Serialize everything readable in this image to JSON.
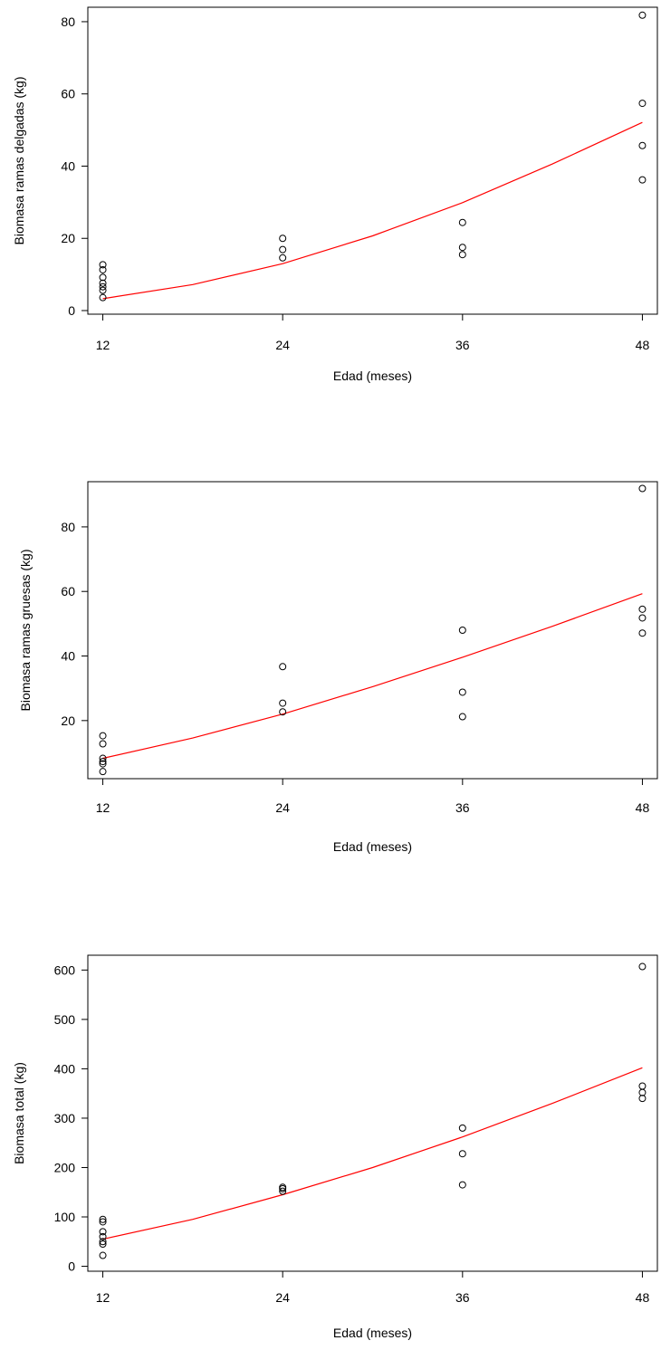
{
  "chart_data": [
    {
      "type": "scatter",
      "xlabel": "Edad (meses)",
      "ylabel": "Biomasa ramas delgadas (kg)",
      "x_ticks": [
        12,
        24,
        36,
        48
      ],
      "y_ticks": [
        0,
        20,
        40,
        60,
        80
      ],
      "xlim": [
        11,
        49
      ],
      "ylim": [
        -1,
        84
      ],
      "points": [
        {
          "x": 12,
          "y": 12.7
        },
        {
          "x": 12,
          "y": 11.3
        },
        {
          "x": 12,
          "y": 9.2
        },
        {
          "x": 12,
          "y": 7.6
        },
        {
          "x": 12,
          "y": 6.6
        },
        {
          "x": 12,
          "y": 5.6
        },
        {
          "x": 12,
          "y": 3.6
        },
        {
          "x": 24,
          "y": 20.0
        },
        {
          "x": 24,
          "y": 16.9
        },
        {
          "x": 24,
          "y": 14.6
        },
        {
          "x": 36,
          "y": 24.4
        },
        {
          "x": 36,
          "y": 17.5
        },
        {
          "x": 36,
          "y": 15.5
        },
        {
          "x": 48,
          "y": 81.8
        },
        {
          "x": 48,
          "y": 57.4
        },
        {
          "x": 48,
          "y": 45.7
        },
        {
          "x": 48,
          "y": 36.2
        }
      ],
      "fit_line": {
        "color": "#ff0000",
        "x": [
          12,
          18,
          24,
          30,
          36,
          42,
          48
        ],
        "y": [
          3.3,
          7.2,
          13.0,
          20.7,
          29.9,
          40.6,
          52.1
        ]
      }
    },
    {
      "type": "scatter",
      "xlabel": "Edad (meses)",
      "ylabel": "Biomasa ramas gruesas (kg)",
      "x_ticks": [
        12,
        24,
        36,
        48
      ],
      "y_ticks": [
        20,
        40,
        60,
        80
      ],
      "xlim": [
        11,
        49
      ],
      "ylim": [
        2,
        94
      ],
      "points": [
        {
          "x": 12,
          "y": 15.3
        },
        {
          "x": 12,
          "y": 12.8
        },
        {
          "x": 12,
          "y": 8.3
        },
        {
          "x": 12,
          "y": 7.3
        },
        {
          "x": 12,
          "y": 6.6
        },
        {
          "x": 12,
          "y": 4.2
        },
        {
          "x": 24,
          "y": 36.7
        },
        {
          "x": 24,
          "y": 25.4
        },
        {
          "x": 24,
          "y": 22.7
        },
        {
          "x": 36,
          "y": 48.0
        },
        {
          "x": 36,
          "y": 28.8
        },
        {
          "x": 36,
          "y": 21.2
        },
        {
          "x": 48,
          "y": 91.9
        },
        {
          "x": 48,
          "y": 54.5
        },
        {
          "x": 48,
          "y": 51.8
        },
        {
          "x": 48,
          "y": 47.1
        }
      ],
      "fit_line": {
        "color": "#ff0000",
        "x": [
          12,
          18,
          24,
          30,
          36,
          42,
          48
        ],
        "y": [
          8.3,
          14.6,
          22.0,
          30.5,
          39.6,
          49.2,
          59.3
        ]
      }
    },
    {
      "type": "scatter",
      "xlabel": "Edad (meses)",
      "ylabel": "Biomasa total (kg)",
      "x_ticks": [
        12,
        24,
        36,
        48
      ],
      "y_ticks": [
        0,
        100,
        200,
        300,
        400,
        500,
        600
      ],
      "xlim": [
        11,
        49
      ],
      "ylim": [
        -10,
        630
      ],
      "points": [
        {
          "x": 12,
          "y": 95
        },
        {
          "x": 12,
          "y": 90
        },
        {
          "x": 12,
          "y": 70
        },
        {
          "x": 12,
          "y": 60
        },
        {
          "x": 12,
          "y": 50
        },
        {
          "x": 12,
          "y": 45
        },
        {
          "x": 12,
          "y": 22
        },
        {
          "x": 24,
          "y": 160
        },
        {
          "x": 24,
          "y": 157
        },
        {
          "x": 24,
          "y": 152
        },
        {
          "x": 36,
          "y": 280
        },
        {
          "x": 36,
          "y": 228
        },
        {
          "x": 36,
          "y": 165
        },
        {
          "x": 48,
          "y": 607
        },
        {
          "x": 48,
          "y": 365
        },
        {
          "x": 48,
          "y": 352
        },
        {
          "x": 48,
          "y": 340
        }
      ],
      "fit_line": {
        "color": "#ff0000",
        "x": [
          12,
          18,
          24,
          30,
          36,
          42,
          48
        ],
        "y": [
          55,
          95,
          145,
          200,
          262,
          330,
          402
        ]
      }
    }
  ]
}
